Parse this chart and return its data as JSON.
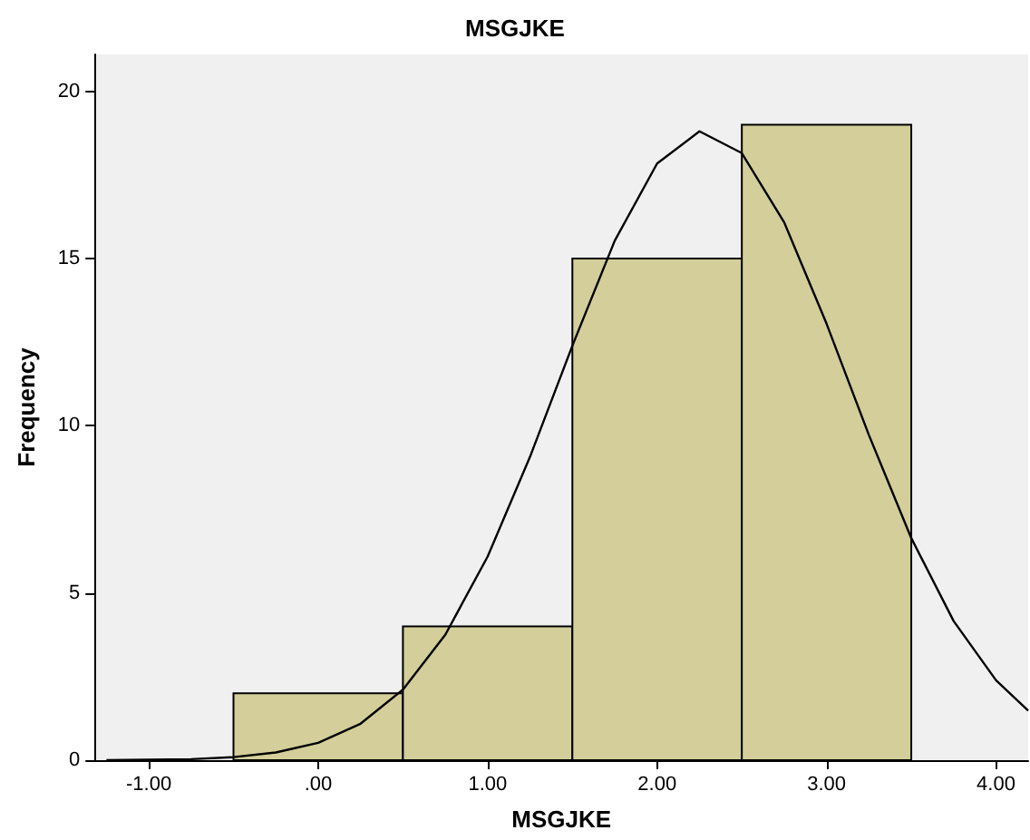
{
  "chart_data": {
    "type": "histogram",
    "title": "MSGJKE",
    "xlabel": "MSGJKE",
    "ylabel": "Frequency",
    "bins": [
      -0.5,
      0.5,
      1.5,
      2.5,
      3.5
    ],
    "values": [
      2,
      4,
      15,
      19
    ],
    "color": "#d3ce9a",
    "series": [
      {
        "type": "line",
        "color": "#000000",
        "x": [
          -1.25,
          -0.75,
          -0.5,
          -0.25,
          0,
          0.25,
          0.5,
          0.75,
          1,
          1.25,
          1.5,
          1.75,
          2,
          2.25,
          2.5,
          2.75,
          3,
          3.25,
          3.5,
          3.75,
          4,
          4.19
        ],
        "values": [
          0,
          0.03,
          0.09,
          0.23,
          0.52,
          1.09,
          2.11,
          3.75,
          6.09,
          9.07,
          12.39,
          15.53,
          17.84,
          18.8,
          18.15,
          16.08,
          13.05,
          9.72,
          6.64,
          4.16,
          2.39,
          1.48
        ]
      }
    ],
    "xlim": [
      -1.32,
      4.19
    ],
    "xticks": [
      {
        "value": -1,
        "label": "-1.00"
      },
      {
        "value": 0,
        "label": ".00"
      },
      {
        "value": 1,
        "label": "1.00"
      },
      {
        "value": 2,
        "label": "2.00"
      },
      {
        "value": 3,
        "label": "3.00"
      },
      {
        "value": 4,
        "label": "4.00"
      }
    ],
    "ylim": [
      0,
      21.1
    ],
    "yticks": [
      0,
      5,
      10,
      15,
      20
    ],
    "marker": "none"
  }
}
